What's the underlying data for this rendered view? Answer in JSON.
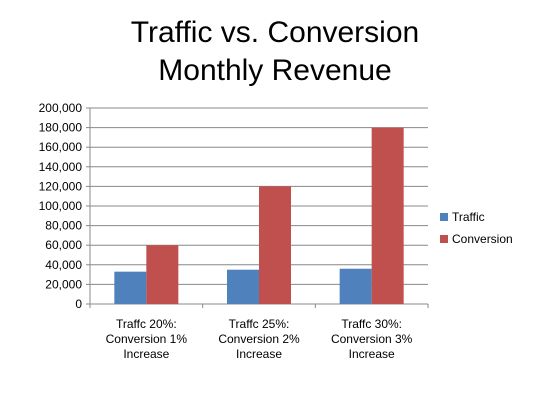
{
  "chart_data": {
    "type": "bar",
    "title": [
      "Traffic vs. Conversion",
      "Monthly Revenue"
    ],
    "categories": [
      [
        "Traffc 20%:",
        "Conversion 1%",
        "Increase"
      ],
      [
        "Traffc 25%:",
        "Conversion 2%",
        "Increase"
      ],
      [
        "Traffc 30%:",
        "Conversion 3%",
        "Increase"
      ]
    ],
    "series": [
      {
        "name": "Traffic",
        "color": "#4F81BD",
        "values": [
          33000,
          35000,
          36000
        ]
      },
      {
        "name": "Conversion",
        "color": "#C0504D",
        "values": [
          60000,
          120000,
          180000
        ]
      }
    ],
    "ylim": [
      0,
      200000
    ],
    "yticks": [
      "0",
      "20,000",
      "40,000",
      "60,000",
      "80,000",
      "100,000",
      "120,000",
      "140,000",
      "160,000",
      "180,000",
      "200,000"
    ],
    "grid": true,
    "legend_position": "right"
  }
}
